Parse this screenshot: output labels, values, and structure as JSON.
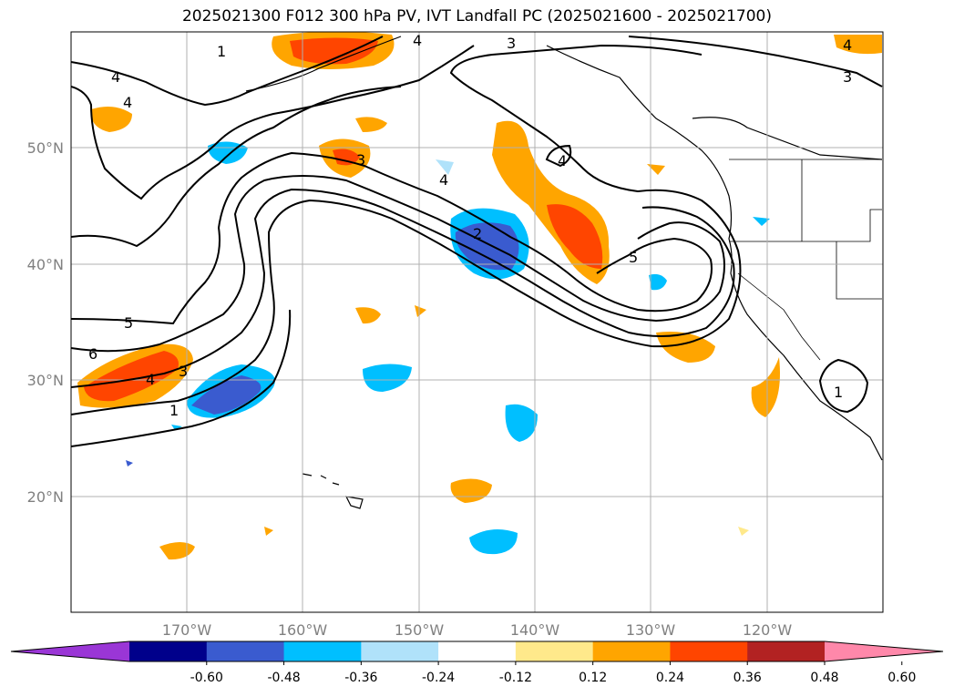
{
  "title": "2025021300 F012 300 hPa PV, IVT Landfall PC (2025021600 - 2025021700)",
  "map": {
    "lon_ticks": [
      "170°W",
      "160°W",
      "150°W",
      "140°W",
      "130°W",
      "120°W"
    ],
    "lat_ticks": [
      "50°N",
      "40°N",
      "30°N",
      "20°N"
    ],
    "grid": true
  },
  "contour_labels": [
    "1",
    "4",
    "3",
    "4",
    "4",
    "3",
    "4",
    "3",
    "4",
    "2",
    "5",
    "5",
    "6",
    "4",
    "3",
    "1",
    "4",
    "1"
  ],
  "colorbar": {
    "extend": "both",
    "levels": [
      "-0.60",
      "-0.48",
      "-0.36",
      "-0.24",
      "-0.12",
      "0.12",
      "0.24",
      "0.36",
      "0.48",
      "0.60"
    ],
    "colors": [
      "#9a36d6",
      "#00008b",
      "#3a5bcf",
      "#00bfff",
      "#b0e2fa",
      "#ffffff",
      "#ffe98b",
      "#ffa500",
      "#ff4500",
      "#b22222",
      "#ff88aa"
    ]
  }
}
